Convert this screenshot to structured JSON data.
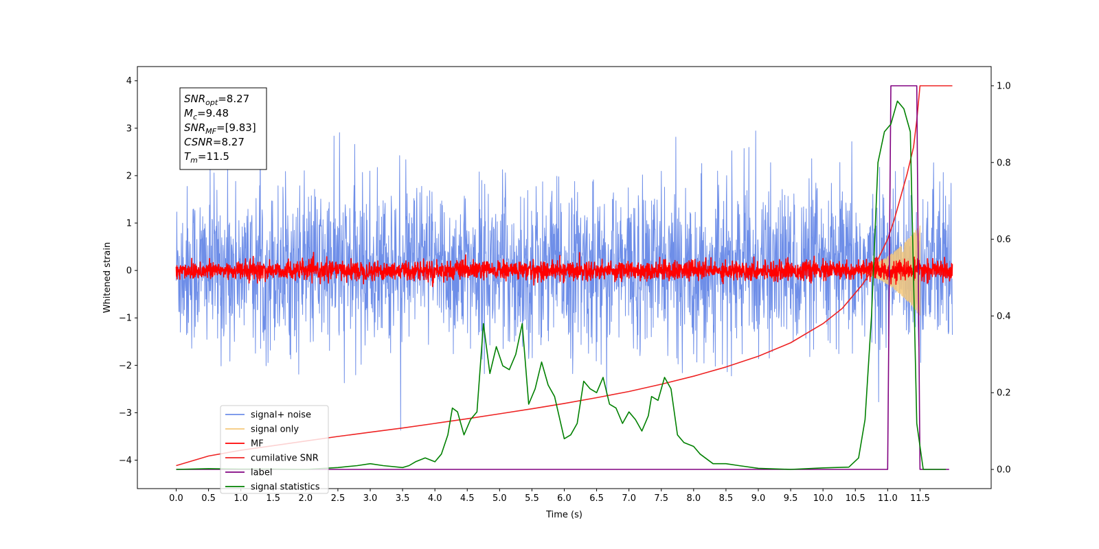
{
  "chart_data": {
    "type": "line",
    "xlabel": "Time (s)",
    "ylabel": "Whitened strain",
    "xlim": [
      -0.6,
      12.6
    ],
    "ylim": [
      -4.6,
      4.3
    ],
    "y2lim": [
      -0.05,
      1.05
    ],
    "x_ticks": [
      "0.0",
      "0.5",
      "1.0",
      "1.5",
      "2.0",
      "2.5",
      "3.0",
      "3.5",
      "4.0",
      "4.5",
      "5.0",
      "5.5",
      "6.0",
      "6.5",
      "7.0",
      "7.5",
      "8.0",
      "8.5",
      "9.0",
      "9.5",
      "10.0",
      "10.5",
      "11.0",
      "11.5"
    ],
    "y_ticks": [
      "4",
      "3",
      "2",
      "1",
      "0",
      "−1",
      "−2",
      "−3",
      "−4"
    ],
    "y2_ticks": [
      "1.0",
      "0.8",
      "0.6",
      "0.4",
      "0.2",
      "0.0"
    ],
    "grid": false,
    "legend_position": "lower-left",
    "annotation": {
      "lines": [
        {
          "main": "SNR",
          "sub": "opt",
          "value": "=8.27"
        },
        {
          "main": "M",
          "sub": "c",
          "value": "=9.48"
        },
        {
          "main": "SNR",
          "sub": "MF",
          "value": "=[9.83]"
        },
        {
          "main": "CSNR",
          "sub": "",
          "value": "=8.27"
        },
        {
          "main": "T",
          "sub": "m",
          "value": "=11.5"
        }
      ]
    },
    "series": [
      {
        "name": "signal+ noise",
        "color": "#6e8ee8",
        "axis": "left",
        "style": "noise",
        "x_range": [
          0.0,
          12.0
        ],
        "std": 0.85
      },
      {
        "name": "signal only",
        "color": "#f5c87a",
        "axis": "left",
        "style": "chirp",
        "x_range": [
          10.3,
          11.5
        ],
        "max_amp": 0.95
      },
      {
        "name": "MF",
        "color": "#ff0000",
        "axis": "left",
        "style": "noise",
        "x_range": [
          0.0,
          12.0
        ],
        "std": 0.1
      },
      {
        "name": "cumilative SNR",
        "color": "#ee2222",
        "axis": "right",
        "points": [
          [
            0.0,
            0.01
          ],
          [
            0.5,
            0.035
          ],
          [
            1.0,
            0.05
          ],
          [
            1.5,
            0.062
          ],
          [
            2.0,
            0.074
          ],
          [
            2.5,
            0.086
          ],
          [
            3.0,
            0.097
          ],
          [
            3.5,
            0.108
          ],
          [
            4.0,
            0.12
          ],
          [
            4.5,
            0.132
          ],
          [
            5.0,
            0.145
          ],
          [
            5.5,
            0.158
          ],
          [
            6.0,
            0.172
          ],
          [
            6.5,
            0.187
          ],
          [
            7.0,
            0.203
          ],
          [
            7.5,
            0.222
          ],
          [
            8.0,
            0.243
          ],
          [
            8.5,
            0.267
          ],
          [
            9.0,
            0.295
          ],
          [
            9.5,
            0.33
          ],
          [
            10.0,
            0.38
          ],
          [
            10.3,
            0.42
          ],
          [
            10.6,
            0.48
          ],
          [
            10.8,
            0.53
          ],
          [
            11.0,
            0.6
          ],
          [
            11.1,
            0.65
          ],
          [
            11.2,
            0.71
          ],
          [
            11.3,
            0.77
          ],
          [
            11.4,
            0.84
          ],
          [
            11.45,
            0.91
          ],
          [
            11.5,
            1.0
          ],
          [
            12.0,
            1.0
          ]
        ]
      },
      {
        "name": "label",
        "color": "#800080",
        "axis": "right",
        "points": [
          [
            0.0,
            0.0
          ],
          [
            11.0,
            0.0
          ],
          [
            11.05,
            1.0
          ],
          [
            11.45,
            1.0
          ],
          [
            11.5,
            0.0
          ],
          [
            11.95,
            0.0
          ]
        ]
      },
      {
        "name": "signal statistics",
        "color": "#008000",
        "axis": "right",
        "points": [
          [
            0.0,
            0.0
          ],
          [
            0.5,
            0.002
          ],
          [
            1.0,
            0.001
          ],
          [
            1.5,
            0.001
          ],
          [
            2.0,
            0.0
          ],
          [
            2.5,
            0.005
          ],
          [
            2.8,
            0.01
          ],
          [
            3.0,
            0.015
          ],
          [
            3.2,
            0.01
          ],
          [
            3.5,
            0.005
          ],
          [
            3.6,
            0.01
          ],
          [
            3.7,
            0.02
          ],
          [
            3.85,
            0.03
          ],
          [
            4.0,
            0.02
          ],
          [
            4.1,
            0.04
          ],
          [
            4.2,
            0.09
          ],
          [
            4.27,
            0.16
          ],
          [
            4.35,
            0.15
          ],
          [
            4.45,
            0.09
          ],
          [
            4.55,
            0.13
          ],
          [
            4.65,
            0.15
          ],
          [
            4.75,
            0.38
          ],
          [
            4.85,
            0.25
          ],
          [
            4.95,
            0.32
          ],
          [
            5.05,
            0.27
          ],
          [
            5.15,
            0.26
          ],
          [
            5.25,
            0.3
          ],
          [
            5.35,
            0.38
          ],
          [
            5.45,
            0.17
          ],
          [
            5.55,
            0.21
          ],
          [
            5.65,
            0.28
          ],
          [
            5.75,
            0.22
          ],
          [
            5.85,
            0.19
          ],
          [
            6.0,
            0.08
          ],
          [
            6.1,
            0.09
          ],
          [
            6.2,
            0.12
          ],
          [
            6.3,
            0.23
          ],
          [
            6.4,
            0.21
          ],
          [
            6.5,
            0.2
          ],
          [
            6.6,
            0.24
          ],
          [
            6.7,
            0.17
          ],
          [
            6.8,
            0.16
          ],
          [
            6.9,
            0.12
          ],
          [
            7.0,
            0.15
          ],
          [
            7.1,
            0.13
          ],
          [
            7.2,
            0.1
          ],
          [
            7.3,
            0.14
          ],
          [
            7.35,
            0.19
          ],
          [
            7.45,
            0.18
          ],
          [
            7.55,
            0.24
          ],
          [
            7.65,
            0.21
          ],
          [
            7.75,
            0.09
          ],
          [
            7.85,
            0.07
          ],
          [
            8.0,
            0.06
          ],
          [
            8.1,
            0.04
          ],
          [
            8.3,
            0.015
          ],
          [
            8.5,
            0.015
          ],
          [
            8.7,
            0.01
          ],
          [
            9.0,
            0.003
          ],
          [
            9.5,
            0.0
          ],
          [
            10.0,
            0.004
          ],
          [
            10.4,
            0.006
          ],
          [
            10.55,
            0.03
          ],
          [
            10.65,
            0.13
          ],
          [
            10.75,
            0.4
          ],
          [
            10.85,
            0.8
          ],
          [
            10.95,
            0.88
          ],
          [
            11.05,
            0.9
          ],
          [
            11.15,
            0.96
          ],
          [
            11.25,
            0.94
          ],
          [
            11.35,
            0.88
          ],
          [
            11.45,
            0.12
          ],
          [
            11.55,
            0.0
          ],
          [
            11.9,
            0.0
          ]
        ]
      }
    ]
  }
}
